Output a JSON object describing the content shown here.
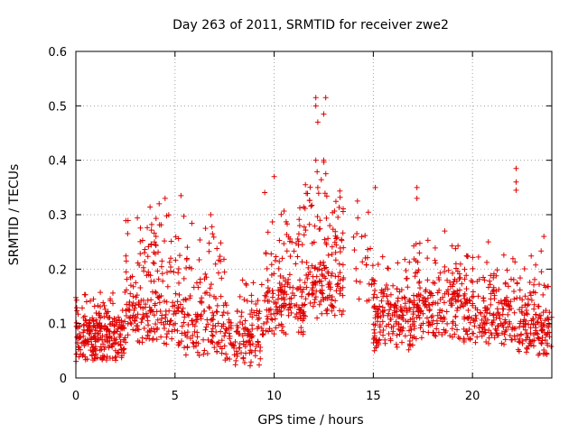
{
  "chart_data": {
    "type": "scatter",
    "title": "Day 263 of 2011, SRMTID for receiver zwe2",
    "xlabel": "GPS time / hours",
    "ylabel": "SRMTID / TECUs",
    "xlim": [
      0,
      24
    ],
    "ylim": [
      0,
      0.6
    ],
    "xticks": [
      0,
      5,
      10,
      15,
      20
    ],
    "yticks": [
      0,
      0.1,
      0.2,
      0.3,
      0.4,
      0.5,
      0.6
    ],
    "xtick_labels": [
      "0",
      "5",
      "10",
      "15",
      "20"
    ],
    "ytick_labels": [
      "0",
      "0.1",
      "0.2",
      "0.3",
      "0.4",
      "0.5",
      "0.6"
    ],
    "grid": true,
    "marker": "plus",
    "color": "#e00000",
    "highlights": [
      {
        "x": 4.2,
        "y": 0.32
      },
      {
        "x": 4.5,
        "y": 0.33
      },
      {
        "x": 5.3,
        "y": 0.335
      },
      {
        "x": 6.8,
        "y": 0.3
      },
      {
        "x": 10.0,
        "y": 0.37
      },
      {
        "x": 12.1,
        "y": 0.515
      },
      {
        "x": 12.1,
        "y": 0.5
      },
      {
        "x": 12.6,
        "y": 0.515
      },
      {
        "x": 12.5,
        "y": 0.485
      },
      {
        "x": 12.2,
        "y": 0.47
      },
      {
        "x": 12.1,
        "y": 0.4
      },
      {
        "x": 12.5,
        "y": 0.4
      },
      {
        "x": 12.2,
        "y": 0.35
      },
      {
        "x": 14.2,
        "y": 0.325
      },
      {
        "x": 15.1,
        "y": 0.35
      },
      {
        "x": 17.2,
        "y": 0.35
      },
      {
        "x": 17.2,
        "y": 0.33
      },
      {
        "x": 18.6,
        "y": 0.27
      },
      {
        "x": 20.8,
        "y": 0.25
      },
      {
        "x": 22.2,
        "y": 0.385
      },
      {
        "x": 22.2,
        "y": 0.36
      },
      {
        "x": 22.2,
        "y": 0.345
      },
      {
        "x": 23.6,
        "y": 0.26
      }
    ],
    "segments": [
      {
        "x0": 0.0,
        "x1": 2.5,
        "base": 0.07,
        "spread": 0.06,
        "n": 260
      },
      {
        "x0": 2.5,
        "x1": 5.0,
        "base": 0.1,
        "spread": 0.2,
        "n": 200
      },
      {
        "x0": 5.0,
        "x1": 7.5,
        "base": 0.08,
        "spread": 0.2,
        "n": 170
      },
      {
        "x0": 7.5,
        "x1": 9.5,
        "base": 0.06,
        "spread": 0.1,
        "n": 130
      },
      {
        "x0": 9.5,
        "x1": 11.5,
        "base": 0.12,
        "spread": 0.2,
        "n": 170
      },
      {
        "x0": 11.5,
        "x1": 13.5,
        "base": 0.15,
        "spread": 0.22,
        "n": 170
      },
      {
        "x0": 14.0,
        "x1": 15.0,
        "base": 0.18,
        "spread": 0.15,
        "n": 25
      },
      {
        "x0": 15.0,
        "x1": 17.0,
        "base": 0.09,
        "spread": 0.1,
        "n": 170
      },
      {
        "x0": 17.0,
        "x1": 19.5,
        "base": 0.11,
        "spread": 0.12,
        "n": 190
      },
      {
        "x0": 19.5,
        "x1": 22.0,
        "base": 0.1,
        "spread": 0.11,
        "n": 190
      },
      {
        "x0": 22.0,
        "x1": 24.0,
        "base": 0.08,
        "spread": 0.12,
        "n": 160
      }
    ]
  }
}
